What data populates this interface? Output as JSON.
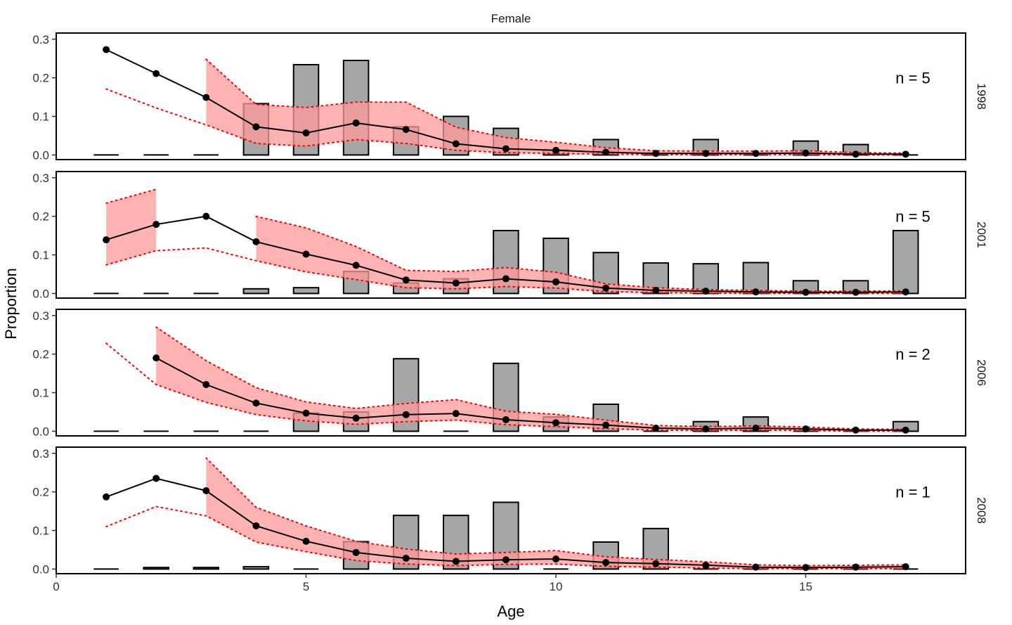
{
  "chart_data": {
    "type": "bar",
    "title": "Female",
    "xlabel": "Age",
    "ylabel": "Proportion",
    "xlim": [
      0,
      18.2
    ],
    "ylim": [
      -0.012,
      0.316
    ],
    "x_ticks": [
      0,
      5,
      10,
      15
    ],
    "y_ticks": [
      0.0,
      0.1,
      0.2,
      0.3
    ],
    "y_tick_labels": [
      "0.0",
      "0.1",
      "0.2",
      "0.3"
    ],
    "grid": false,
    "colors": {
      "bar_fill": "#a6a6a6",
      "bar_stroke": "#000000",
      "band_fill": "#ff9999",
      "band_line": "#ff0000",
      "fit_line": "#000000"
    },
    "ages": [
      1,
      2,
      3,
      4,
      5,
      6,
      7,
      8,
      9,
      10,
      11,
      12,
      13,
      14,
      15,
      16,
      17
    ],
    "panels": [
      {
        "year": "1998",
        "n_label": "n = 5",
        "observed": [
          0.0,
          0.0,
          0.0,
          0.133,
          0.234,
          0.245,
          0.073,
          0.1,
          0.069,
          0.013,
          0.04,
          0.0,
          0.04,
          0.0,
          0.036,
          0.027,
          0.0
        ],
        "fitted": [
          0.273,
          0.211,
          0.149,
          0.073,
          0.057,
          0.083,
          0.066,
          0.029,
          0.016,
          0.012,
          0.007,
          0.004,
          0.004,
          0.004,
          0.005,
          0.002,
          0.002
        ],
        "lower": [
          0.171,
          0.122,
          0.078,
          0.03,
          0.023,
          0.04,
          0.03,
          0.012,
          0.006,
          0.004,
          0.002,
          0.001,
          0.001,
          0.001,
          0.001,
          0.0,
          0.0
        ],
        "upper": [
          null,
          null,
          0.248,
          0.131,
          0.123,
          0.137,
          0.137,
          0.072,
          0.045,
          0.033,
          0.019,
          0.011,
          0.01,
          0.01,
          0.011,
          0.006,
          0.005
        ]
      },
      {
        "year": "2001",
        "n_label": "n = 5",
        "observed": [
          0.0,
          0.0,
          0.0,
          0.012,
          0.015,
          0.057,
          0.027,
          0.038,
          0.163,
          0.143,
          0.106,
          0.079,
          0.077,
          0.08,
          0.033,
          0.033,
          0.163
        ],
        "fitted": [
          0.139,
          0.179,
          0.2,
          0.134,
          0.102,
          0.073,
          0.035,
          0.027,
          0.038,
          0.03,
          0.014,
          0.008,
          0.006,
          0.004,
          0.003,
          0.003,
          0.004
        ],
        "lower": [
          0.074,
          0.111,
          0.118,
          0.085,
          0.056,
          0.036,
          0.015,
          0.012,
          0.018,
          0.014,
          0.005,
          0.002,
          0.001,
          0.0,
          0.0,
          0.0,
          0.0
        ],
        "upper": [
          0.234,
          0.27,
          null,
          0.2,
          0.17,
          0.122,
          0.06,
          0.057,
          0.067,
          0.055,
          0.025,
          0.015,
          0.01,
          0.008,
          0.006,
          0.006,
          0.007
        ]
      },
      {
        "year": "2006",
        "n_label": "n = 2",
        "observed": [
          0.0,
          0.0,
          0.0,
          0.0,
          0.047,
          0.05,
          0.188,
          0.0,
          0.176,
          0.037,
          0.07,
          0.0,
          0.025,
          0.037,
          0.0,
          0.0,
          0.025
        ],
        "fitted": [
          null,
          0.19,
          0.121,
          0.073,
          0.047,
          0.034,
          0.043,
          0.046,
          0.03,
          0.022,
          0.016,
          0.008,
          0.006,
          0.008,
          0.006,
          0.003,
          0.003
        ],
        "lower": [
          0.228,
          0.121,
          0.075,
          0.043,
          0.027,
          0.018,
          0.025,
          0.029,
          0.017,
          0.012,
          0.007,
          0.003,
          0.002,
          0.003,
          0.002,
          0.0,
          0.0
        ],
        "upper": [
          null,
          0.27,
          0.183,
          0.113,
          0.076,
          0.059,
          0.072,
          0.082,
          0.052,
          0.044,
          0.029,
          0.015,
          0.012,
          0.014,
          0.011,
          0.006,
          0.005
        ]
      },
      {
        "year": "2008",
        "n_label": "n = 1",
        "observed": [
          0.0,
          0.004,
          0.004,
          0.006,
          0.0,
          0.071,
          0.139,
          0.139,
          0.173,
          0.0,
          0.07,
          0.105,
          0.0,
          0.0,
          0.0,
          0.0,
          0.0
        ],
        "fitted": [
          0.187,
          0.235,
          0.203,
          0.112,
          0.072,
          0.043,
          0.028,
          0.02,
          0.024,
          0.026,
          0.017,
          0.014,
          0.01,
          0.005,
          0.004,
          0.005,
          0.006
        ],
        "lower": [
          0.11,
          0.162,
          0.138,
          0.07,
          0.045,
          0.022,
          0.013,
          0.009,
          0.012,
          0.013,
          0.007,
          0.005,
          0.003,
          0.001,
          0.001,
          0.001,
          0.001
        ],
        "upper": [
          null,
          null,
          0.288,
          0.16,
          0.112,
          0.072,
          0.052,
          0.039,
          0.043,
          0.048,
          0.032,
          0.025,
          0.019,
          0.011,
          0.009,
          0.01,
          0.011
        ]
      }
    ]
  }
}
